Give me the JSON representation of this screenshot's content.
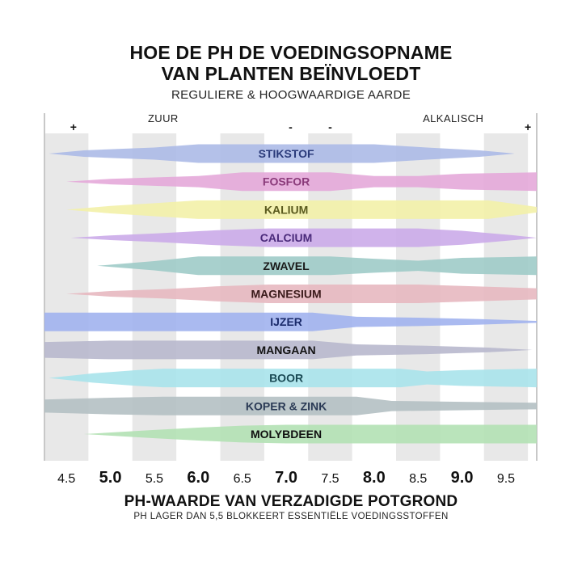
{
  "title_line1": "HOE DE PH DE VOEDINGSOPNAME",
  "title_line2": "VAN PLANTEN BEÏNVLOEDT",
  "subtitle": "REGULIERE & HOOGWAARDIGE AARDE",
  "xlabel": "PH-WAARDE VAN VERZADIGDE POTGROND",
  "note": "PH LAGER DAN 5,5 BLOKKEERT ESSENTIËLE VOEDINGSSTOFFEN",
  "chart_data": {
    "type": "bar",
    "xlim": [
      4.25,
      9.85
    ],
    "zone_labels": [
      {
        "text": "ZUUR",
        "x": 5.6
      },
      {
        "text": "ALKALISCH",
        "x": 8.9
      }
    ],
    "markers": [
      {
        "text": "+",
        "x": 4.58
      },
      {
        "text": "-",
        "x": 7.05
      },
      {
        "text": "-",
        "x": 7.5
      },
      {
        "text": "+",
        "x": 9.75
      }
    ],
    "x_ticks": [
      {
        "label": "4.5",
        "value": 4.5,
        "major": false
      },
      {
        "label": "5.0",
        "value": 5.0,
        "major": true
      },
      {
        "label": "5.5",
        "value": 5.5,
        "major": false
      },
      {
        "label": "6.0",
        "value": 6.0,
        "major": true
      },
      {
        "label": "6.5",
        "value": 6.5,
        "major": false
      },
      {
        "label": "7.0",
        "value": 7.0,
        "major": true
      },
      {
        "label": "7.5",
        "value": 7.5,
        "major": false
      },
      {
        "label": "8.0",
        "value": 8.0,
        "major": true
      },
      {
        "label": "8.5",
        "value": 8.5,
        "major": false
      },
      {
        "label": "9.0",
        "value": 9.0,
        "major": true
      },
      {
        "label": "9.5",
        "value": 9.5,
        "major": false
      }
    ],
    "series": [
      {
        "name": "STIKSTOF",
        "color": "#aab8e6",
        "text_color": "#2a3a7a",
        "profile": [
          [
            4.3,
            0.0
          ],
          [
            4.7,
            0.35
          ],
          [
            5.5,
            0.65
          ],
          [
            6.0,
            1.0
          ],
          [
            8.0,
            1.0
          ],
          [
            8.6,
            0.65
          ],
          [
            9.2,
            0.35
          ],
          [
            9.6,
            0.0
          ]
        ]
      },
      {
        "name": "FOSFOR",
        "color": "#e4a6d8",
        "text_color": "#8a3a7a",
        "profile": [
          [
            4.5,
            0.0
          ],
          [
            5.0,
            0.3
          ],
          [
            6.0,
            0.6
          ],
          [
            6.5,
            1.0
          ],
          [
            7.5,
            1.0
          ],
          [
            8.0,
            0.6
          ],
          [
            8.5,
            0.6
          ],
          [
            9.0,
            0.85
          ],
          [
            9.85,
            1.0
          ]
        ]
      },
      {
        "name": "KALIUM",
        "color": "#f2f0a6",
        "text_color": "#5a5a1e",
        "profile": [
          [
            4.5,
            0.0
          ],
          [
            5.0,
            0.4
          ],
          [
            5.5,
            0.7
          ],
          [
            6.0,
            1.0
          ],
          [
            9.3,
            1.0
          ],
          [
            9.85,
            0.3
          ]
        ]
      },
      {
        "name": "CALCIUM",
        "color": "#caa8e8",
        "text_color": "#4a2a7a",
        "profile": [
          [
            4.55,
            0.0
          ],
          [
            5.0,
            0.25
          ],
          [
            5.5,
            0.45
          ],
          [
            6.2,
            0.8
          ],
          [
            6.8,
            1.0
          ],
          [
            8.5,
            1.0
          ],
          [
            9.0,
            0.75
          ],
          [
            9.6,
            0.25
          ],
          [
            9.85,
            0.0
          ]
        ]
      },
      {
        "name": "ZWAVEL",
        "color": "#9ccac6",
        "text_color": "#1a1a1a",
        "profile": [
          [
            4.85,
            0.0
          ],
          [
            5.5,
            0.5
          ],
          [
            6.0,
            1.0
          ],
          [
            7.5,
            1.0
          ],
          [
            8.0,
            0.75
          ],
          [
            8.5,
            0.55
          ],
          [
            9.0,
            0.85
          ],
          [
            9.85,
            1.0
          ]
        ]
      },
      {
        "name": "MAGNESIUM",
        "color": "#e6b6be",
        "text_color": "#3a1a1a",
        "profile": [
          [
            4.5,
            0.0
          ],
          [
            5.0,
            0.3
          ],
          [
            5.6,
            0.5
          ],
          [
            6.2,
            0.8
          ],
          [
            6.8,
            1.0
          ],
          [
            8.5,
            1.0
          ],
          [
            9.0,
            0.85
          ],
          [
            9.85,
            0.6
          ]
        ]
      },
      {
        "name": "IJZER",
        "color": "#9eb0ee",
        "text_color": "#1a2a6a",
        "profile": [
          [
            4.25,
            1.0
          ],
          [
            7.3,
            1.0
          ],
          [
            7.8,
            0.55
          ],
          [
            8.5,
            0.45
          ],
          [
            9.2,
            0.3
          ],
          [
            9.85,
            0.1
          ]
        ]
      },
      {
        "name": "MANGAAN",
        "color": "#b6b6cc",
        "text_color": "#111111",
        "profile": [
          [
            4.25,
            0.85
          ],
          [
            5.0,
            1.0
          ],
          [
            7.3,
            1.0
          ],
          [
            7.8,
            0.6
          ],
          [
            8.6,
            0.45
          ],
          [
            9.3,
            0.25
          ],
          [
            9.8,
            0.0
          ]
        ]
      },
      {
        "name": "BOOR",
        "color": "#a6e2ea",
        "text_color": "#1a4a55",
        "profile": [
          [
            4.3,
            0.0
          ],
          [
            4.8,
            0.5
          ],
          [
            5.3,
            0.85
          ],
          [
            5.6,
            1.0
          ],
          [
            8.3,
            1.0
          ],
          [
            8.6,
            0.7
          ],
          [
            9.0,
            0.85
          ],
          [
            9.85,
            1.0
          ]
        ]
      },
      {
        "name": "KOPER & ZINK",
        "color": "#b2bec2",
        "text_color": "#2a3a55",
        "profile": [
          [
            4.25,
            0.7
          ],
          [
            5.0,
            0.9
          ],
          [
            5.6,
            1.0
          ],
          [
            7.8,
            1.0
          ],
          [
            8.2,
            0.55
          ],
          [
            9.0,
            0.45
          ],
          [
            9.85,
            0.35
          ]
        ]
      },
      {
        "name": "MOLYBDEEN",
        "color": "#b0e0b2",
        "text_color": "#111111",
        "profile": [
          [
            4.7,
            0.0
          ],
          [
            5.5,
            0.45
          ],
          [
            6.0,
            0.7
          ],
          [
            6.5,
            0.9
          ],
          [
            7.0,
            1.0
          ],
          [
            9.85,
            1.0
          ]
        ]
      }
    ]
  }
}
